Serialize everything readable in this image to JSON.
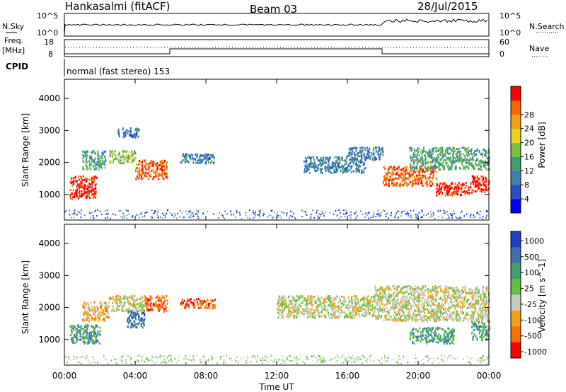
{
  "header": {
    "station": "Hankasalmi (fitACF)",
    "beam": "Beam 03",
    "date": "28/Jul/2015"
  },
  "nsky_panel": {
    "left_label": "N.Sky",
    "right_label": "N.Search",
    "left_ticks": [
      "10^5",
      "10^0"
    ],
    "right_ticks": [
      "10^5",
      "10^0"
    ]
  },
  "freq_panel": {
    "left_label_1": "Freq.",
    "left_label_2": "[MHz]",
    "right_label": "Nave",
    "left_ticks": [
      "18",
      "8"
    ],
    "right_ticks": [
      "60",
      "0"
    ]
  },
  "cpid": {
    "label": "CPID",
    "text": "normal (fast stereo) 153"
  },
  "chart_data": [
    {
      "type": "heatmap",
      "name": "power",
      "ylabel": "Slant Range [km]",
      "ylim": [
        200,
        4600
      ],
      "yticks": [
        "1000",
        "2000",
        "3000",
        "4000"
      ],
      "xlim": [
        "00:00",
        "24:00"
      ],
      "colorbar": {
        "label": "Power [dB]",
        "ticks": [
          "4",
          "8",
          "12",
          "16",
          "20",
          "24",
          "28"
        ],
        "colors": [
          "#0000ff",
          "#2a4fc8",
          "#3f7fb0",
          "#3f9f6e",
          "#7fbf3f",
          "#e6d020",
          "#f0a010",
          "#ff6600",
          "#ff0000"
        ]
      },
      "features": [
        {
          "t": [
            0.3,
            1.8
          ],
          "r": [
            900,
            1600
          ],
          "level": 8
        },
        {
          "t": [
            1.0,
            2.3
          ],
          "r": [
            1800,
            2400
          ],
          "level": 3
        },
        {
          "t": [
            2.5,
            4.0
          ],
          "r": [
            2000,
            2400
          ],
          "level": 4
        },
        {
          "t": [
            3.0,
            4.2
          ],
          "r": [
            2800,
            3100
          ],
          "level": 2
        },
        {
          "t": [
            4.0,
            5.8
          ],
          "r": [
            1500,
            2100
          ],
          "level": 7
        },
        {
          "t": [
            6.5,
            8.5
          ],
          "r": [
            2000,
            2300
          ],
          "level": 2
        },
        {
          "t": [
            13.5,
            17.0
          ],
          "r": [
            1700,
            2200
          ],
          "level": 2
        },
        {
          "t": [
            16.0,
            18.0
          ],
          "r": [
            2100,
            2500
          ],
          "level": 2
        },
        {
          "t": [
            18.0,
            21.0
          ],
          "r": [
            1300,
            1900
          ],
          "level": 7
        },
        {
          "t": [
            19.5,
            24.0
          ],
          "r": [
            1800,
            2500
          ],
          "level": 3
        },
        {
          "t": [
            21.0,
            23.0
          ],
          "r": [
            1000,
            1400
          ],
          "level": 8
        },
        {
          "t": [
            23.0,
            24.0
          ],
          "r": [
            1100,
            1600
          ],
          "level": 8
        }
      ]
    },
    {
      "type": "heatmap",
      "name": "velocity",
      "ylabel": "Slant Range [km]",
      "ylim": [
        200,
        4600
      ],
      "yticks": [
        "1000",
        "2000",
        "3000",
        "4000"
      ],
      "xlim": [
        "00:00",
        "24:00"
      ],
      "xticks": [
        "00:00",
        "04:00",
        "08:00",
        "12:00",
        "16:00",
        "20:00",
        "00:00"
      ],
      "xlabel": "Time UT",
      "colorbar": {
        "label": "Velocity [m s^-1]",
        "ticks": [
          "1000",
          "500",
          "100",
          "25",
          "-25",
          "-100",
          "-500",
          "-1000"
        ],
        "colors": [
          "#2040c0",
          "#3f6fb0",
          "#3f9f6e",
          "#60c040",
          "#c8c8c0",
          "#f0a010",
          "#ff7000",
          "#ff0000"
        ]
      },
      "features": [
        {
          "t": [
            0.3,
            2.0
          ],
          "r": [
            900,
            1500
          ],
          "level": 2
        },
        {
          "t": [
            1.0,
            2.5
          ],
          "r": [
            1600,
            2200
          ],
          "level": 5
        },
        {
          "t": [
            2.5,
            4.5
          ],
          "r": [
            1900,
            2400
          ],
          "level": 4
        },
        {
          "t": [
            3.5,
            4.5
          ],
          "r": [
            1400,
            1900
          ],
          "level": 1
        },
        {
          "t": [
            4.5,
            5.8
          ],
          "r": [
            1900,
            2400
          ],
          "level": 6
        },
        {
          "t": [
            6.5,
            8.5
          ],
          "r": [
            2000,
            2300
          ],
          "level": 6
        },
        {
          "t": [
            12.0,
            17.5
          ],
          "r": [
            1700,
            2400
          ],
          "level": 4
        },
        {
          "t": [
            17.5,
            24.0
          ],
          "r": [
            1600,
            2700
          ],
          "level": 4
        },
        {
          "t": [
            19.5,
            22.0
          ],
          "r": [
            900,
            1400
          ],
          "level": 2
        },
        {
          "t": [
            23.0,
            24.0
          ],
          "r": [
            1000,
            1600
          ],
          "level": 2
        }
      ]
    }
  ]
}
